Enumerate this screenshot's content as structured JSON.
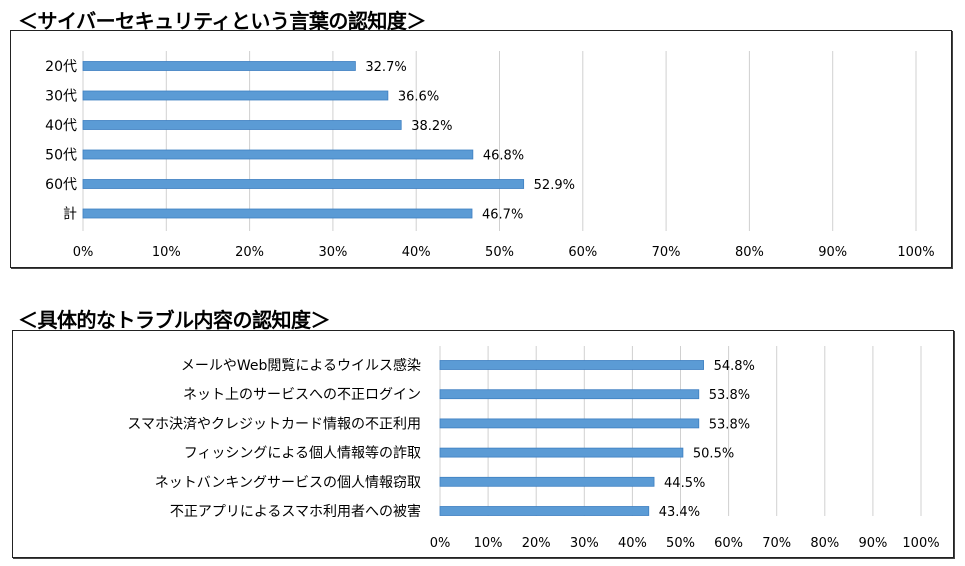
{
  "titles": {
    "chart1": "＜サイバーセキュリティという言葉の認知度＞",
    "chart2": "＜具体的なトラブル内容の認知度＞"
  },
  "colors": {
    "bar": "#5B9BD5",
    "bar_border": "#3E7FC1",
    "grid": "#D0D0D0"
  },
  "chart_data": [
    {
      "type": "bar",
      "orientation": "horizontal",
      "title": "＜サイバーセキュリティという言葉の認知度＞",
      "categories": [
        "20代",
        "30代",
        "40代",
        "50代",
        "60代",
        "計"
      ],
      "values": [
        32.7,
        36.6,
        38.2,
        46.8,
        52.9,
        46.7
      ],
      "value_labels": [
        "32.7%",
        "36.6%",
        "38.2%",
        "46.8%",
        "52.9%",
        "46.7%"
      ],
      "xlabel": "",
      "ylabel": "",
      "xlim": [
        0,
        100
      ],
      "ticks": [
        "0%",
        "10%",
        "20%",
        "30%",
        "40%",
        "50%",
        "60%",
        "70%",
        "80%",
        "90%",
        "100%"
      ],
      "grid": true,
      "legend": "none"
    },
    {
      "type": "bar",
      "orientation": "horizontal",
      "title": "＜具体的なトラブル内容の認知度＞",
      "categories": [
        "メールやWeb閲覧によるウイルス感染",
        "ネット上のサービスへの不正ログイン",
        "スマホ決済やクレジットカード情報の不正利用",
        "フィッシングによる個人情報等の詐取",
        "ネットバンキングサービスの個人情報窃取",
        "不正アプリによるスマホ利用者への被害"
      ],
      "values": [
        54.8,
        53.8,
        53.8,
        50.5,
        44.5,
        43.4
      ],
      "value_labels": [
        "54.8%",
        "53.8%",
        "53.8%",
        "50.5%",
        "44.5%",
        "43.4%"
      ],
      "xlabel": "",
      "ylabel": "",
      "xlim": [
        0,
        100
      ],
      "ticks": [
        "0%",
        "10%",
        "20%",
        "30%",
        "40%",
        "50%",
        "60%",
        "70%",
        "80%",
        "90%",
        "100%"
      ],
      "grid": true,
      "legend": "none"
    }
  ]
}
